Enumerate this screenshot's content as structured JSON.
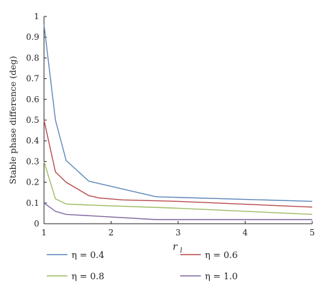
{
  "chart_data": {
    "type": "line",
    "ylabel": "Stable phase difference (deg)",
    "xlabel": "r",
    "xlabel_sub": "l",
    "xlim": [
      1,
      5
    ],
    "ylim": [
      0,
      1
    ],
    "xticks": [
      1,
      2,
      3,
      4,
      5
    ],
    "yticks": [
      0,
      0.1,
      0.2,
      0.3,
      0.4,
      0.5,
      0.6,
      0.7,
      0.8,
      0.9,
      1
    ],
    "grid": false,
    "legend_placement": "bottom",
    "series": [
      {
        "name": "η = 0.4",
        "color": "#5b87b8",
        "x": [
          1.0,
          1.17,
          1.33,
          1.67,
          2.67,
          5.0
        ],
        "y": [
          0.96,
          0.5,
          0.305,
          0.205,
          0.13,
          0.108
        ]
      },
      {
        "name": "η = 0.6",
        "color": "#b8484c",
        "x": [
          1.0,
          1.17,
          1.33,
          1.67,
          1.83,
          2.17,
          3.0,
          5.0
        ],
        "y": [
          0.5,
          0.25,
          0.2,
          0.135,
          0.124,
          0.115,
          0.108,
          0.08
        ]
      },
      {
        "name": "η = 0.8",
        "color": "#9dbb61",
        "x": [
          1.0,
          1.17,
          1.33,
          1.67,
          3.0,
          5.0
        ],
        "y": [
          0.3,
          0.12,
          0.095,
          0.09,
          0.075,
          0.045
        ]
      },
      {
        "name": "η = 1.0",
        "color": "#7e67a0",
        "x": [
          1.0,
          1.17,
          1.33,
          2.67,
          5.0
        ],
        "y": [
          0.1,
          0.06,
          0.045,
          0.02,
          0.02
        ]
      }
    ]
  }
}
